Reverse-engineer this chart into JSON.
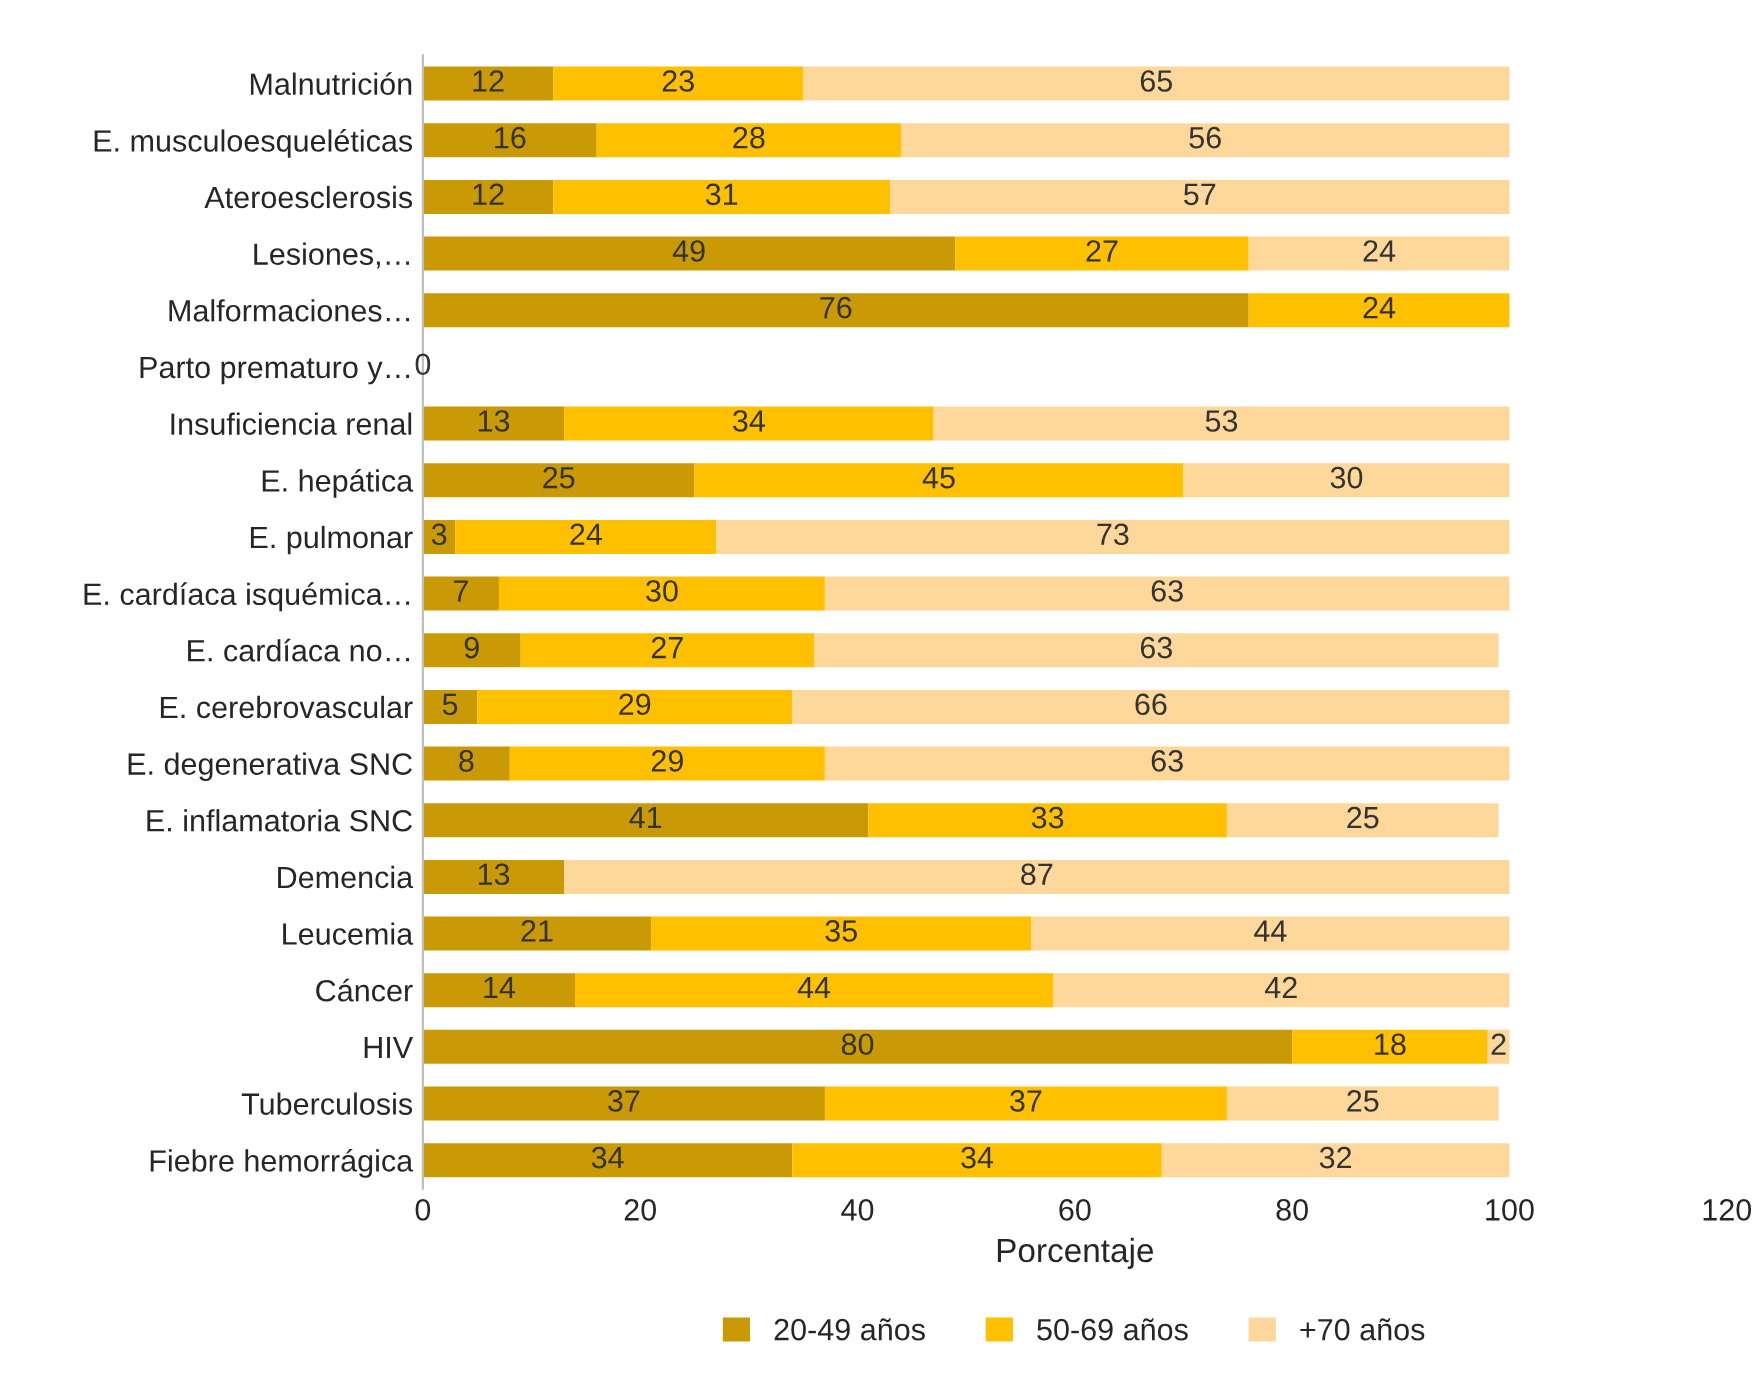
{
  "chart_data": {
    "type": "bar",
    "orientation": "horizontal",
    "stacked": true,
    "data_labels": true,
    "xlabel": "Porcentaje",
    "xlim": [
      0,
      120
    ],
    "xticks": [
      0,
      20,
      40,
      60,
      80,
      100,
      120
    ],
    "grid": false,
    "legend": "bottom",
    "categories": [
      "Malnutrición",
      "E. musculoesqueléticas",
      "Ateroesclerosis",
      "Lesiones,…",
      "Malformaciones…",
      "Parto prematuro y…",
      "Insuficiencia renal",
      "E. hepática",
      "E. pulmonar",
      "E. cardíaca isquémica…",
      "E. cardíaca no…",
      "E. cerebrovascular",
      "E. degenerativa SNC",
      "E. inflamatoria SNC",
      "Demencia",
      "Leucemia",
      "Cáncer",
      "HIV",
      "Tuberculosis",
      "Fiebre hemorrágica"
    ],
    "series": [
      {
        "name": "20-49 años",
        "color": "#c99a06",
        "values": [
          12,
          16,
          12,
          49,
          76,
          0,
          13,
          25,
          3,
          7,
          9,
          5,
          8,
          41,
          13,
          21,
          14,
          80,
          37,
          34
        ]
      },
      {
        "name": "50-69 años",
        "color": "#ffc000",
        "values": [
          23,
          28,
          31,
          27,
          24,
          null,
          34,
          45,
          24,
          30,
          27,
          29,
          29,
          33,
          null,
          35,
          44,
          18,
          37,
          34
        ]
      },
      {
        "name": "+70 años",
        "color": "#fdd89a",
        "values": [
          65,
          56,
          57,
          24,
          null,
          null,
          53,
          30,
          73,
          63,
          63,
          66,
          63,
          25,
          87,
          44,
          42,
          2,
          25,
          32
        ]
      }
    ]
  }
}
